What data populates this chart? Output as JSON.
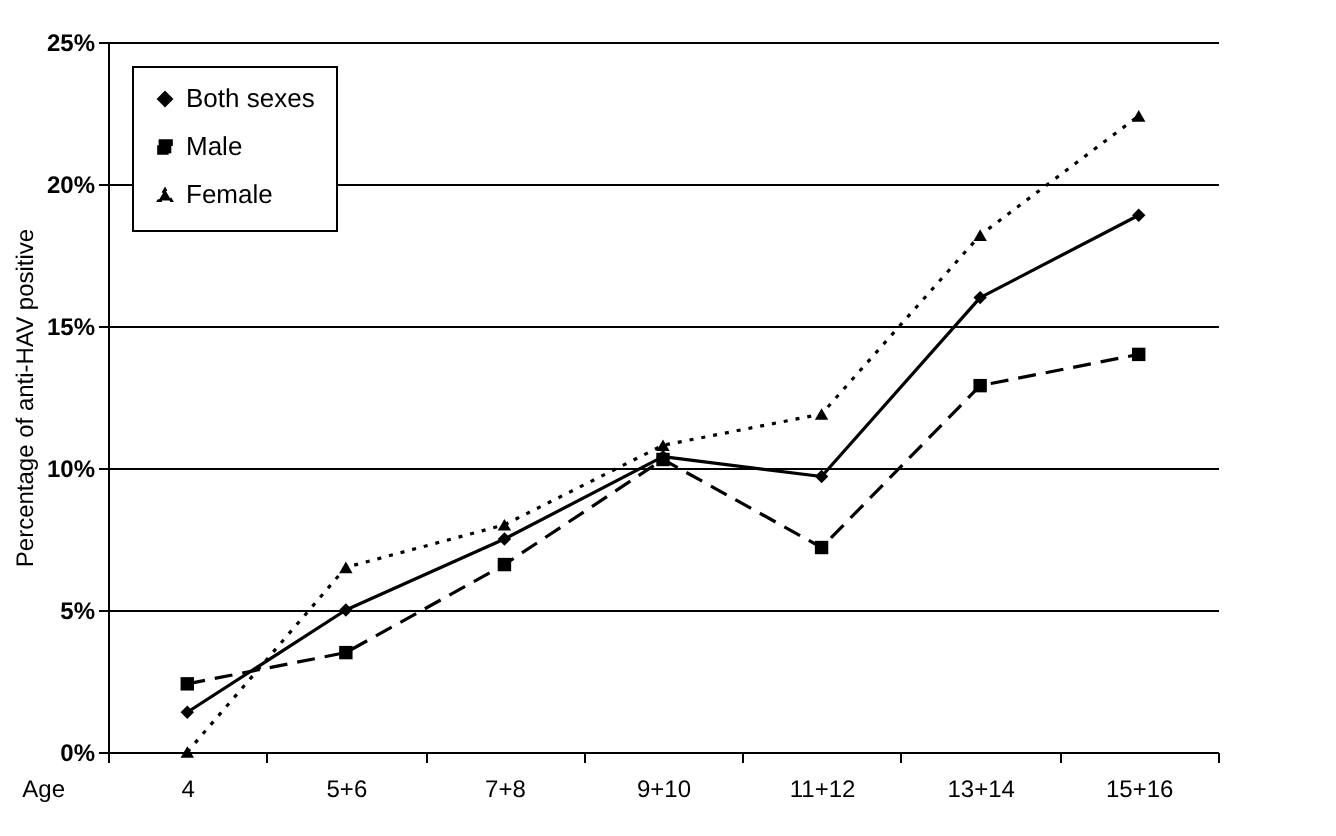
{
  "chart_data": {
    "type": "line",
    "xlabel": "Age",
    "ylabel": "Percentage of anti-HAV positive",
    "categories": [
      "4",
      "5+6",
      "7+8",
      "9+10",
      "11+12",
      "13+14",
      "15+16"
    ],
    "series": [
      {
        "name": "Both sexes",
        "color": "#000000",
        "marker": "diamond",
        "line_style": "solid",
        "values": [
          1.4,
          5.0,
          7.5,
          10.4,
          9.7,
          16.0,
          18.9
        ]
      },
      {
        "name": "Male",
        "color": "#000000",
        "marker": "square",
        "line_style": "dashed",
        "values": [
          2.4,
          3.5,
          6.6,
          10.3,
          7.2,
          12.9,
          14.0
        ]
      },
      {
        "name": "Female",
        "color": "#000000",
        "marker": "triangle",
        "line_style": "dotted",
        "values": [
          0,
          6.5,
          8.0,
          10.8,
          11.9,
          18.2,
          22.4
        ]
      }
    ],
    "ylim": [
      0,
      25
    ],
    "yticks": [
      {
        "value": 0,
        "label": "0%"
      },
      {
        "value": 5,
        "label": "5%"
      },
      {
        "value": 10,
        "label": "10%"
      },
      {
        "value": 15,
        "label": "15%"
      },
      {
        "value": 20,
        "label": "20%"
      },
      {
        "value": 25,
        "label": "25%"
      }
    ],
    "grid": "y",
    "legend": "top left"
  }
}
